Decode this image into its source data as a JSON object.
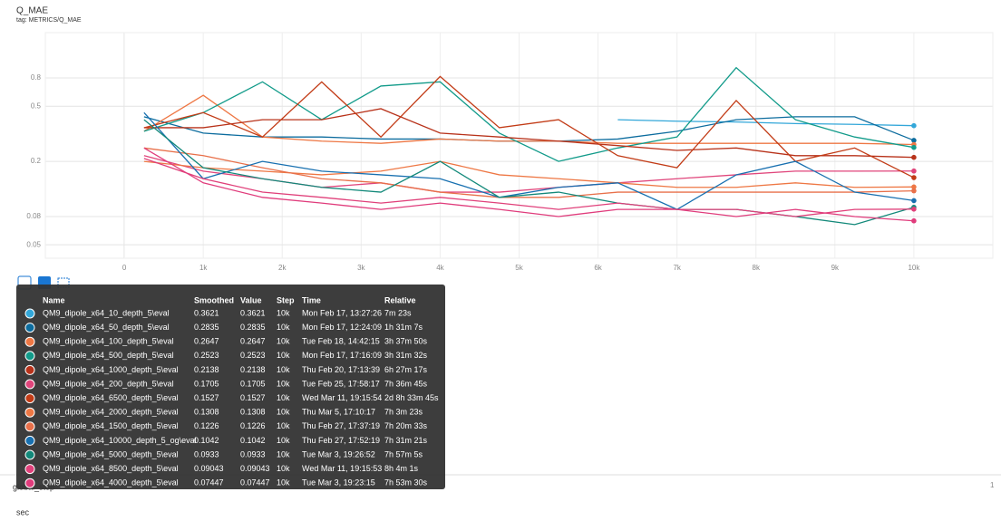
{
  "chart_data": {
    "type": "line",
    "title": "Q_MAE",
    "subtitle": "tag: METRICS/Q_MAE",
    "log_y": true,
    "grid": true,
    "xlim": [
      -1000,
      11000
    ],
    "ylim": [
      0.04,
      1.7
    ],
    "xticks": [
      0,
      {
        "value": 1000,
        "label": "1k"
      },
      {
        "value": 2000,
        "label": "2k"
      },
      {
        "value": 3000,
        "label": "3k"
      },
      {
        "value": 4000,
        "label": "4k"
      },
      {
        "value": 5000,
        "label": "5k"
      },
      {
        "value": 6000,
        "label": "6k"
      },
      {
        "value": 7000,
        "label": "7k"
      },
      {
        "value": 8000,
        "label": "8k"
      },
      {
        "value": 9000,
        "label": "9k"
      },
      {
        "value": 10000,
        "label": "10k"
      }
    ],
    "yticks": [
      0.05,
      0.08,
      0.2,
      0.5,
      0.8
    ],
    "x": [
      250,
      1000,
      1750,
      2500,
      3250,
      4000,
      4750,
      5500,
      6250,
      7000,
      7750,
      8500,
      9250,
      10000
    ],
    "series": [
      {
        "name": "QM9_dipole_x64_10_depth_5\\eval",
        "color": "#33a7d9",
        "values": [
          null,
          null,
          null,
          null,
          null,
          null,
          null,
          null,
          0.4,
          0.39,
          0.385,
          0.375,
          0.37,
          0.3621
        ]
      },
      {
        "name": "QM9_dipole_x64_50_depth_5\\eval",
        "color": "#0c6c9e",
        "values": [
          0.42,
          0.32,
          0.3,
          0.3,
          0.29,
          0.29,
          0.28,
          0.28,
          0.29,
          0.33,
          0.4,
          0.42,
          0.42,
          0.2835
        ]
      },
      {
        "name": "QM9_dipole_x64_100_depth_5\\eval",
        "color": "#ee7744",
        "values": [
          0.33,
          0.6,
          0.3,
          0.28,
          0.27,
          0.29,
          0.28,
          0.28,
          0.27,
          0.27,
          0.27,
          0.27,
          0.27,
          0.2647
        ]
      },
      {
        "name": "QM9_dipole_x64_500_depth_5\\eval",
        "color": "#129b8a",
        "values": [
          0.33,
          0.45,
          0.75,
          0.4,
          0.7,
          0.75,
          0.32,
          0.2,
          0.25,
          0.3,
          0.95,
          0.4,
          0.3,
          0.2523
        ]
      },
      {
        "name": "QM9_dipole_x64_1000_depth_5\\eval",
        "color": "#b8321a",
        "values": [
          0.35,
          0.35,
          0.4,
          0.4,
          0.48,
          0.32,
          0.3,
          0.28,
          0.26,
          0.24,
          0.25,
          0.22,
          0.22,
          0.2138
        ]
      },
      {
        "name": "QM9_dipole_x64_200_depth_5\\eval",
        "color": "#e0457b",
        "values": [
          0.22,
          0.17,
          0.15,
          0.13,
          0.14,
          0.12,
          0.12,
          0.13,
          0.14,
          0.15,
          0.16,
          0.17,
          0.17,
          0.1705
        ]
      },
      {
        "name": "QM9_dipole_x64_6500_depth_5\\eval",
        "color": "#c23b16",
        "values": [
          0.35,
          0.45,
          0.3,
          0.75,
          0.3,
          0.82,
          0.35,
          0.4,
          0.22,
          0.18,
          0.55,
          0.2,
          0.25,
          0.1527
        ]
      },
      {
        "name": "QM9_dipole_x64_2000_depth_5\\eval",
        "color": "#ee7744",
        "values": [
          0.2,
          0.18,
          0.17,
          0.16,
          0.17,
          0.2,
          0.16,
          0.15,
          0.14,
          0.13,
          0.13,
          0.14,
          0.13,
          0.1308
        ]
      },
      {
        "name": "QM9_dipole_x64_1500_depth_5\\eval",
        "color": "#e8704a",
        "values": [
          0.25,
          0.22,
          0.18,
          0.15,
          0.14,
          0.12,
          0.11,
          0.11,
          0.12,
          0.12,
          0.12,
          0.12,
          0.12,
          0.1226
        ]
      },
      {
        "name": "QM9_dipole_x64_10000_depth_5_og\\eval",
        "color": "#1870b0",
        "values": [
          0.45,
          0.15,
          0.2,
          0.17,
          0.16,
          0.15,
          0.11,
          0.13,
          0.14,
          0.09,
          0.16,
          0.2,
          0.12,
          0.1042
        ]
      },
      {
        "name": "QM9_dipole_x64_5000_depth_5\\eval",
        "color": "#13897a",
        "values": [
          0.4,
          0.18,
          0.15,
          0.13,
          0.12,
          0.2,
          0.11,
          0.12,
          0.1,
          0.09,
          0.09,
          0.08,
          0.07,
          0.0933
        ]
      },
      {
        "name": "QM9_dipole_x64_8500_depth_5\\eval",
        "color": "#e0407a",
        "values": [
          0.21,
          0.15,
          0.12,
          0.11,
          0.1,
          0.11,
          0.1,
          0.09,
          0.1,
          0.09,
          0.09,
          0.08,
          0.09,
          0.09043
        ]
      },
      {
        "name": "QM9_dipole_x64_4000_depth_5\\eval",
        "color": "#e03c7c",
        "values": [
          0.25,
          0.14,
          0.11,
          0.1,
          0.09,
          0.1,
          0.09,
          0.08,
          0.09,
          0.09,
          0.08,
          0.09,
          0.08,
          0.07447
        ]
      }
    ]
  },
  "tooltip": {
    "columns": [
      "Name",
      "Smoothed",
      "Value",
      "Step",
      "Time",
      "Relative"
    ],
    "rows": [
      [
        "QM9_dipole_x64_10_depth_5\\eval",
        "0.3621",
        "0.3621",
        "10k",
        "Mon Feb 17, 13:27:26",
        "7m 23s"
      ],
      [
        "QM9_dipole_x64_50_depth_5\\eval",
        "0.2835",
        "0.2835",
        "10k",
        "Mon Feb 17, 12:24:09",
        "1h 31m 7s"
      ],
      [
        "QM9_dipole_x64_100_depth_5\\eval",
        "0.2647",
        "0.2647",
        "10k",
        "Tue Feb 18, 14:42:15",
        "3h 37m 50s"
      ],
      [
        "QM9_dipole_x64_500_depth_5\\eval",
        "0.2523",
        "0.2523",
        "10k",
        "Mon Feb 17, 17:16:09",
        "3h 31m 32s"
      ],
      [
        "QM9_dipole_x64_1000_depth_5\\eval",
        "0.2138",
        "0.2138",
        "10k",
        "Thu Feb 20, 17:13:39",
        "6h 27m 17s"
      ],
      [
        "QM9_dipole_x64_200_depth_5\\eval",
        "0.1705",
        "0.1705",
        "10k",
        "Tue Feb 25, 17:58:17",
        "7h 36m 45s"
      ],
      [
        "QM9_dipole_x64_6500_depth_5\\eval",
        "0.1527",
        "0.1527",
        "10k",
        "Wed Mar 11, 19:15:54",
        "2d 8h 33m 45s"
      ],
      [
        "QM9_dipole_x64_2000_depth_5\\eval",
        "0.1308",
        "0.1308",
        "10k",
        "Thu Mar 5, 17:10:17",
        "7h 3m 23s"
      ],
      [
        "QM9_dipole_x64_1500_depth_5\\eval",
        "0.1226",
        "0.1226",
        "10k",
        "Thu Feb 27, 17:37:19",
        "7h 20m 33s"
      ],
      [
        "QM9_dipole_x64_10000_depth_5_og\\eval",
        "0.1042",
        "0.1042",
        "10k",
        "Thu Feb 27, 17:52:19",
        "7h 31m 21s"
      ],
      [
        "QM9_dipole_x64_5000_depth_5\\eval",
        "0.0933",
        "0.0933",
        "10k",
        "Tue Mar 3, 19:26:52",
        "7h 57m 5s"
      ],
      [
        "QM9_dipole_x64_8500_depth_5\\eval",
        "0.09043",
        "0.09043",
        "10k",
        "Wed Mar 11, 19:15:53",
        "8h 4m 1s"
      ],
      [
        "QM9_dipole_x64_4000_depth_5\\eval",
        "0.07447",
        "0.07447",
        "10k",
        "Tue Mar 3, 19:23:15",
        "7h 53m 30s"
      ]
    ]
  },
  "footer": {
    "axis_label": "global_step",
    "count": "1",
    "next_section": "sec"
  }
}
